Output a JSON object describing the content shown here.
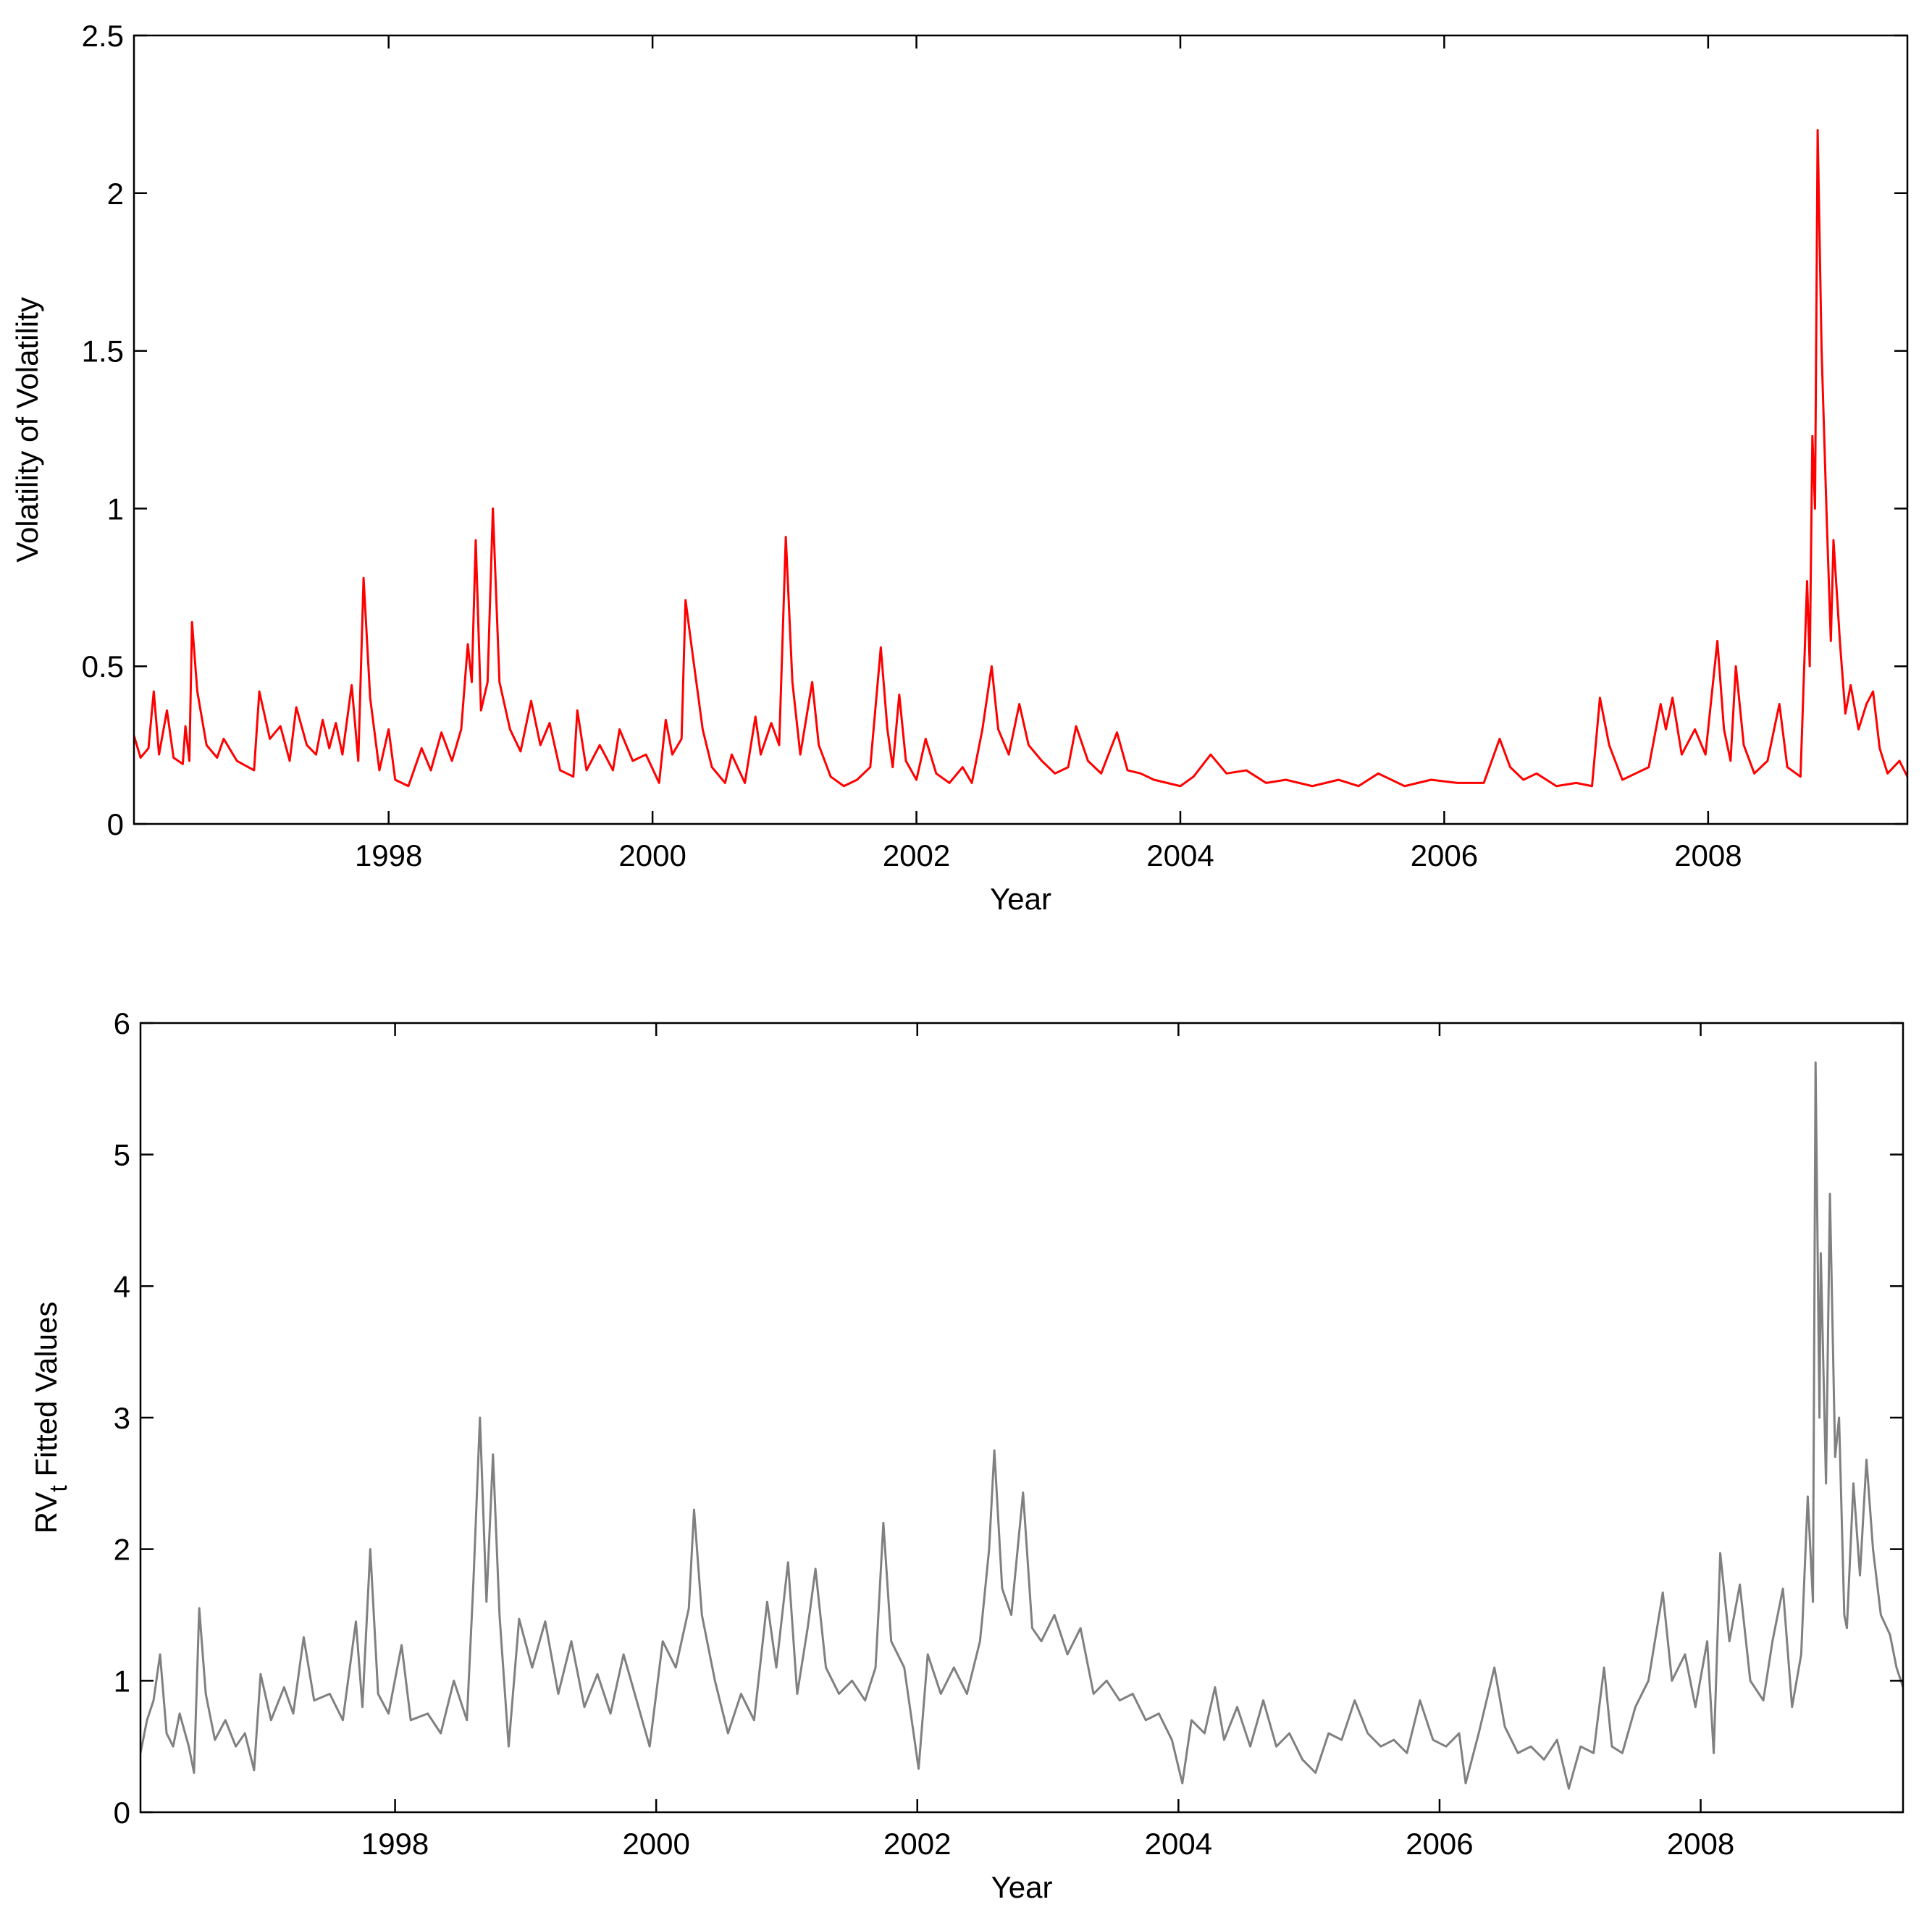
{
  "chart_data": [
    {
      "type": "line",
      "x_label": "Year",
      "y_label": "Volatility of Volatility",
      "color": "#ff0000",
      "xlim": [
        1996.07,
        2009.51
      ],
      "xticks": [
        1998,
        2000,
        2002,
        2004,
        2006,
        2008
      ],
      "ylim": [
        0,
        2.5
      ],
      "yticks": [
        0,
        0.5,
        1,
        1.5,
        2,
        2.5
      ],
      "x": [
        1996.07,
        1996.12,
        1996.18,
        1996.22,
        1996.26,
        1996.32,
        1996.37,
        1996.44,
        1996.46,
        1996.49,
        1996.51,
        1996.55,
        1996.62,
        1996.7,
        1996.75,
        1996.85,
        1996.98,
        1997.02,
        1997.1,
        1997.18,
        1997.25,
        1997.3,
        1997.38,
        1997.45,
        1997.5,
        1997.55,
        1997.6,
        1997.65,
        1997.72,
        1997.77,
        1997.81,
        1997.86,
        1997.93,
        1998.0,
        1998.05,
        1998.15,
        1998.25,
        1998.32,
        1998.4,
        1998.48,
        1998.55,
        1998.6,
        1998.63,
        1998.66,
        1998.7,
        1998.75,
        1998.79,
        1998.84,
        1998.92,
        1999.0,
        1999.08,
        1999.15,
        1999.22,
        1999.3,
        1999.4,
        1999.43,
        1999.5,
        1999.6,
        1999.7,
        1999.75,
        1999.85,
        1999.95,
        2000.05,
        2000.1,
        2000.15,
        2000.22,
        2000.25,
        2000.3,
        2000.38,
        2000.45,
        2000.55,
        2000.6,
        2000.7,
        2000.78,
        2000.82,
        2000.9,
        2000.96,
        2001.01,
        2001.06,
        2001.12,
        2001.21,
        2001.26,
        2001.35,
        2001.45,
        2001.55,
        2001.65,
        2001.73,
        2001.78,
        2001.82,
        2001.87,
        2001.92,
        2002.0,
        2002.07,
        2002.15,
        2002.25,
        2002.35,
        2002.42,
        2002.5,
        2002.57,
        2002.62,
        2002.7,
        2002.78,
        2002.85,
        2002.95,
        2003.05,
        2003.15,
        2003.21,
        2003.3,
        2003.4,
        2003.52,
        2003.6,
        2003.7,
        2003.8,
        2003.9,
        2004.0,
        2004.1,
        2004.23,
        2004.35,
        2004.5,
        2004.65,
        2004.8,
        2005.0,
        2005.2,
        2005.35,
        2005.5,
        2005.7,
        2005.9,
        2006.1,
        2006.3,
        2006.42,
        2006.5,
        2006.6,
        2006.7,
        2006.85,
        2007.0,
        2007.12,
        2007.18,
        2007.25,
        2007.35,
        2007.45,
        2007.55,
        2007.64,
        2007.68,
        2007.73,
        2007.8,
        2007.9,
        2007.98,
        2008.07,
        2008.12,
        2008.17,
        2008.21,
        2008.27,
        2008.35,
        2008.45,
        2008.54,
        2008.6,
        2008.7,
        2008.75,
        2008.77,
        2008.79,
        2008.81,
        2008.83,
        2008.86,
        2008.9,
        2008.93,
        2008.95,
        2009.0,
        2009.04,
        2009.08,
        2009.14,
        2009.2,
        2009.25,
        2009.3,
        2009.36,
        2009.45,
        2009.51
      ],
      "values": [
        0.28,
        0.21,
        0.24,
        0.42,
        0.22,
        0.36,
        0.21,
        0.19,
        0.31,
        0.2,
        0.64,
        0.42,
        0.25,
        0.21,
        0.27,
        0.2,
        0.17,
        0.42,
        0.27,
        0.31,
        0.2,
        0.37,
        0.25,
        0.22,
        0.33,
        0.24,
        0.32,
        0.22,
        0.44,
        0.2,
        0.78,
        0.4,
        0.17,
        0.3,
        0.14,
        0.12,
        0.24,
        0.17,
        0.29,
        0.2,
        0.3,
        0.57,
        0.45,
        0.9,
        0.36,
        0.45,
        1.0,
        0.45,
        0.3,
        0.23,
        0.39,
        0.25,
        0.32,
        0.17,
        0.15,
        0.36,
        0.17,
        0.25,
        0.17,
        0.3,
        0.2,
        0.22,
        0.13,
        0.33,
        0.22,
        0.27,
        0.71,
        0.55,
        0.3,
        0.18,
        0.13,
        0.22,
        0.13,
        0.34,
        0.22,
        0.32,
        0.25,
        0.91,
        0.45,
        0.22,
        0.45,
        0.25,
        0.15,
        0.12,
        0.14,
        0.18,
        0.56,
        0.3,
        0.18,
        0.41,
        0.2,
        0.14,
        0.27,
        0.16,
        0.13,
        0.18,
        0.13,
        0.3,
        0.5,
        0.3,
        0.22,
        0.38,
        0.25,
        0.2,
        0.16,
        0.18,
        0.31,
        0.2,
        0.16,
        0.29,
        0.17,
        0.16,
        0.14,
        0.13,
        0.12,
        0.15,
        0.22,
        0.16,
        0.17,
        0.13,
        0.14,
        0.12,
        0.14,
        0.12,
        0.16,
        0.12,
        0.14,
        0.13,
        0.13,
        0.27,
        0.18,
        0.14,
        0.16,
        0.12,
        0.13,
        0.12,
        0.4,
        0.25,
        0.14,
        0.16,
        0.18,
        0.38,
        0.3,
        0.4,
        0.22,
        0.3,
        0.22,
        0.58,
        0.3,
        0.2,
        0.5,
        0.25,
        0.16,
        0.2,
        0.38,
        0.18,
        0.15,
        0.77,
        0.5,
        1.23,
        1.0,
        2.2,
        1.5,
        0.95,
        0.58,
        0.9,
        0.57,
        0.35,
        0.44,
        0.3,
        0.38,
        0.42,
        0.24,
        0.16,
        0.2,
        0.15
      ]
    },
    {
      "type": "line",
      "x_label": "Year",
      "y_label_parts": [
        "RV",
        "t",
        " Fitted Values"
      ],
      "color": "#808080",
      "xlim": [
        1996.05,
        2009.55
      ],
      "xticks": [
        1998,
        2000,
        2002,
        2004,
        2006,
        2008
      ],
      "ylim": [
        0,
        6
      ],
      "yticks": [
        0,
        1,
        2,
        3,
        4,
        5,
        6
      ],
      "x": [
        1996.05,
        1996.1,
        1996.15,
        1996.2,
        1996.25,
        1996.3,
        1996.35,
        1996.42,
        1996.46,
        1996.5,
        1996.55,
        1996.62,
        1996.7,
        1996.78,
        1996.85,
        1996.92,
        1996.97,
        1997.05,
        1997.15,
        1997.22,
        1997.3,
        1997.38,
        1997.5,
        1997.6,
        1997.7,
        1997.75,
        1997.81,
        1997.87,
        1997.95,
        1998.05,
        1998.12,
        1998.25,
        1998.35,
        1998.45,
        1998.55,
        1998.6,
        1998.65,
        1998.7,
        1998.75,
        1998.8,
        1998.87,
        1998.95,
        1999.05,
        1999.15,
        1999.25,
        1999.35,
        1999.45,
        1999.55,
        1999.65,
        1999.75,
        1999.85,
        1999.95,
        2000.05,
        2000.15,
        2000.25,
        2000.29,
        2000.35,
        2000.45,
        2000.55,
        2000.65,
        2000.75,
        2000.85,
        2000.92,
        2001.01,
        2001.08,
        2001.16,
        2001.22,
        2001.3,
        2001.4,
        2001.5,
        2001.6,
        2001.68,
        2001.74,
        2001.8,
        2001.9,
        2002.01,
        2002.08,
        2002.18,
        2002.28,
        2002.38,
        2002.48,
        2002.55,
        2002.59,
        2002.65,
        2002.72,
        2002.81,
        2002.88,
        2002.95,
        2003.05,
        2003.15,
        2003.25,
        2003.35,
        2003.45,
        2003.55,
        2003.65,
        2003.75,
        2003.85,
        2003.95,
        2004.03,
        2004.1,
        2004.2,
        2004.28,
        2004.35,
        2004.45,
        2004.55,
        2004.65,
        2004.75,
        2004.85,
        2004.95,
        2005.05,
        2005.15,
        2005.25,
        2005.35,
        2005.45,
        2005.55,
        2005.65,
        2005.75,
        2005.85,
        2005.95,
        2006.05,
        2006.15,
        2006.2,
        2006.3,
        2006.42,
        2006.5,
        2006.6,
        2006.7,
        2006.8,
        2006.9,
        2006.99,
        2007.08,
        2007.18,
        2007.26,
        2007.32,
        2007.4,
        2007.5,
        2007.6,
        2007.71,
        2007.78,
        2007.88,
        2007.96,
        2008.05,
        2008.1,
        2008.15,
        2008.22,
        2008.3,
        2008.38,
        2008.48,
        2008.55,
        2008.63,
        2008.7,
        2008.77,
        2008.82,
        2008.86,
        2008.88,
        2008.91,
        2008.92,
        2008.96,
        2008.99,
        2009.03,
        2009.06,
        2009.1,
        2009.12,
        2009.17,
        2009.22,
        2009.27,
        2009.32,
        2009.38,
        2009.45,
        2009.5,
        2009.55
      ],
      "values": [
        0.45,
        0.7,
        0.85,
        1.2,
        0.6,
        0.5,
        0.75,
        0.5,
        0.3,
        1.55,
        0.9,
        0.55,
        0.7,
        0.5,
        0.6,
        0.32,
        1.05,
        0.7,
        0.95,
        0.75,
        1.33,
        0.85,
        0.9,
        0.7,
        1.45,
        0.8,
        2.0,
        0.9,
        0.75,
        1.27,
        0.7,
        0.75,
        0.6,
        1.0,
        0.7,
        1.75,
        3.0,
        1.6,
        2.72,
        1.5,
        0.5,
        1.47,
        1.1,
        1.45,
        0.9,
        1.3,
        0.8,
        1.05,
        0.75,
        1.2,
        0.85,
        0.5,
        1.3,
        1.1,
        1.55,
        2.3,
        1.5,
        1.0,
        0.6,
        0.9,
        0.7,
        1.6,
        1.1,
        1.9,
        0.9,
        1.4,
        1.85,
        1.1,
        0.9,
        1.0,
        0.85,
        1.1,
        2.2,
        1.3,
        1.1,
        0.33,
        1.2,
        0.9,
        1.1,
        0.9,
        1.3,
        2.0,
        2.75,
        1.7,
        1.5,
        2.43,
        1.4,
        1.3,
        1.5,
        1.2,
        1.4,
        0.9,
        1.0,
        0.85,
        0.9,
        0.7,
        0.75,
        0.55,
        0.22,
        0.7,
        0.6,
        0.95,
        0.55,
        0.8,
        0.5,
        0.85,
        0.5,
        0.6,
        0.4,
        0.3,
        0.6,
        0.55,
        0.85,
        0.6,
        0.5,
        0.55,
        0.45,
        0.85,
        0.55,
        0.5,
        0.6,
        0.22,
        0.6,
        1.1,
        0.65,
        0.45,
        0.5,
        0.4,
        0.55,
        0.18,
        0.5,
        0.45,
        1.1,
        0.5,
        0.45,
        0.8,
        1.0,
        1.67,
        1.0,
        1.2,
        0.8,
        1.3,
        0.45,
        1.97,
        1.3,
        1.73,
        1.0,
        0.85,
        1.3,
        1.7,
        0.8,
        1.2,
        2.4,
        1.6,
        5.7,
        3.0,
        4.25,
        2.5,
        4.7,
        2.7,
        3.0,
        1.5,
        1.4,
        2.5,
        1.8,
        2.68,
        2.0,
        1.5,
        1.35,
        1.1,
        0.95
      ]
    }
  ]
}
